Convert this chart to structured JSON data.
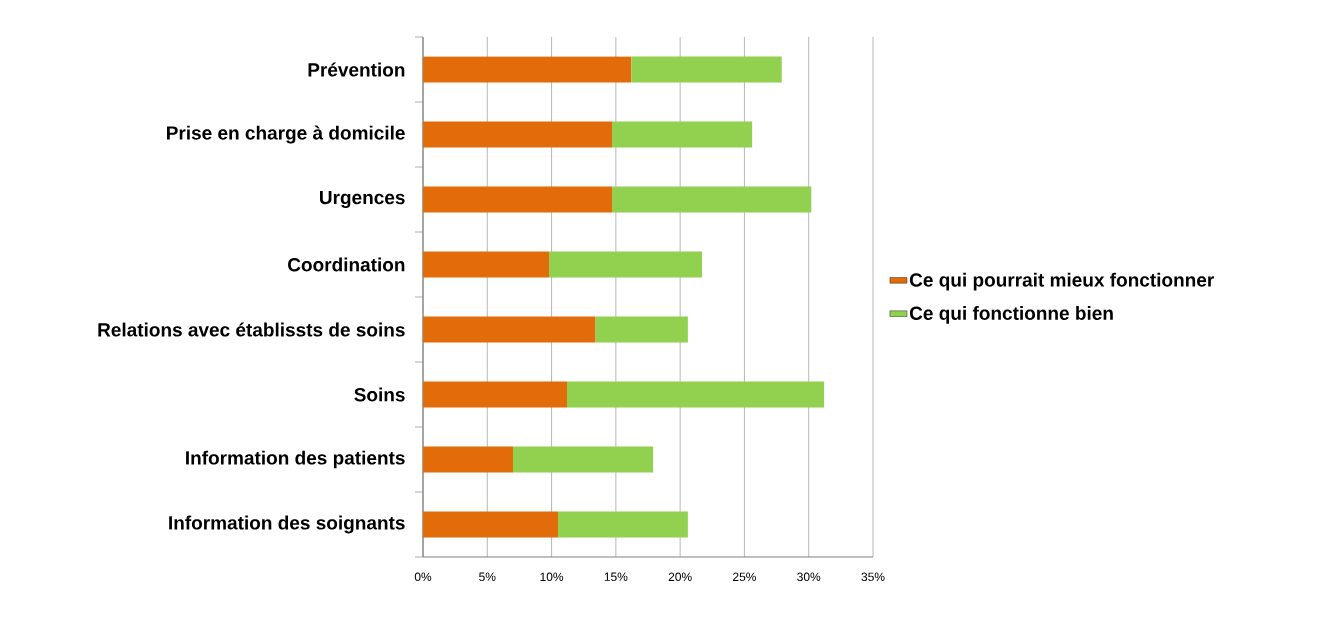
{
  "chart_data": {
    "type": "bar",
    "orientation": "horizontal",
    "stacked": true,
    "categories": [
      "Prévention",
      "Prise en charge à domicile",
      "Urgences",
      "Coordination",
      "Relations avec établissts de soins",
      "Soins",
      "Information des patients",
      "Information des soignants"
    ],
    "series": [
      {
        "name": "Ce qui pourrait mieux fonctionner",
        "color": "#e36c0a",
        "values": [
          16.2,
          14.7,
          14.7,
          9.8,
          13.4,
          11.2,
          7.0,
          10.5
        ]
      },
      {
        "name": "Ce qui fonctionne bien",
        "color": "#92d050",
        "values": [
          11.7,
          10.9,
          15.5,
          11.9,
          7.2,
          20.0,
          10.9,
          10.1
        ]
      }
    ],
    "xlim": [
      0,
      35
    ],
    "xticks": [
      {
        "value": 0,
        "label": "0%"
      },
      {
        "value": 5,
        "label": "5%"
      },
      {
        "value": 10,
        "label": "10%"
      },
      {
        "value": 15,
        "label": "15%"
      },
      {
        "value": 20,
        "label": "20%"
      },
      {
        "value": 25,
        "label": "25%"
      },
      {
        "value": 30,
        "label": "30%"
      },
      {
        "value": 35,
        "label": "35%"
      }
    ],
    "grid": "x",
    "legend": "right"
  }
}
